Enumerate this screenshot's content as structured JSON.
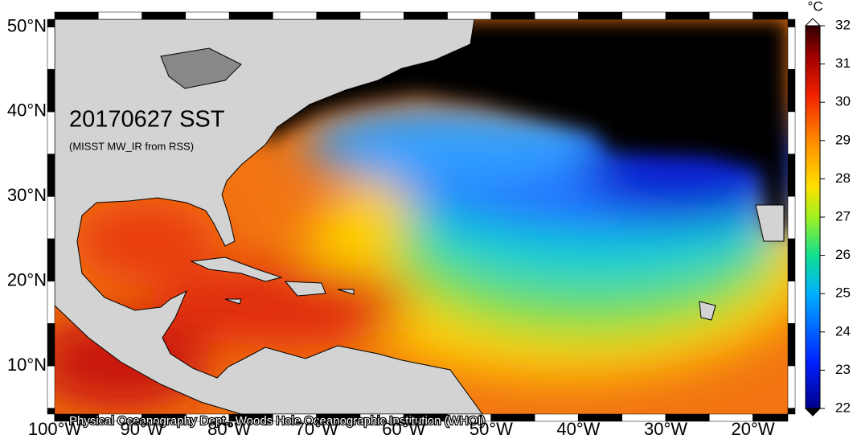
{
  "map": {
    "title": "20170627 SST",
    "subtitle": "(MISST MW_IR from RSS)",
    "credit": "Physical Oceanography Dept., Woods Hole Oceanographic Institution (WHOI)",
    "xlim": [
      -100,
      -16
    ],
    "ylim": [
      4.3,
      50.9
    ],
    "xticks": [
      {
        "value": -100,
        "label": "100°W"
      },
      {
        "value": -90,
        "label": "90°W"
      },
      {
        "value": -80,
        "label": "80°W"
      },
      {
        "value": -70,
        "label": "70°W"
      },
      {
        "value": -60,
        "label": "60°W"
      },
      {
        "value": -50,
        "label": "50°W"
      },
      {
        "value": -40,
        "label": "40°W"
      },
      {
        "value": -30,
        "label": "30°W"
      },
      {
        "value": -20,
        "label": "20°W"
      }
    ],
    "yticks": [
      {
        "value": 10,
        "label": "10°N"
      },
      {
        "value": 20,
        "label": "20°N"
      },
      {
        "value": 30,
        "label": "30°N"
      },
      {
        "value": 40,
        "label": "40°N"
      },
      {
        "value": 50,
        "label": "50°N"
      }
    ],
    "colorbar": {
      "unit": "°C",
      "clim": [
        22,
        32
      ],
      "ticks": [
        22,
        23,
        24,
        25,
        26,
        27,
        28,
        29,
        30,
        31,
        32
      ]
    }
  }
}
